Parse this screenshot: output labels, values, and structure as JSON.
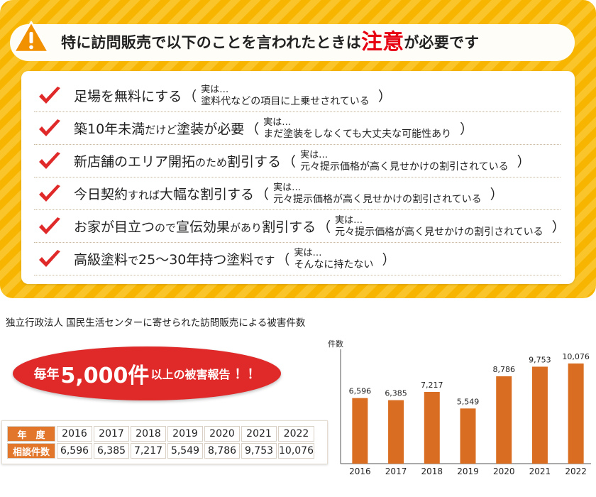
{
  "warning": {
    "title_before": "特に訪問販売で以下のことを言われたときは",
    "title_highlight": "注意",
    "title_after": "が必要です",
    "icon": "warning-triangle-icon",
    "colors": {
      "panel": "#f7b500",
      "highlight": "#e60012",
      "check": "#e02a2a"
    },
    "items": [
      {
        "claim_parts": [
          "足場を無料にする"
        ],
        "claim_small": [],
        "jitsu": "実は…",
        "detail": "塗料代などの項目に上乗せされている"
      },
      {
        "claim_parts": [
          "築10年未満",
          "塗装が必要"
        ],
        "claim_small": [
          "だけど"
        ],
        "jitsu": "実は…",
        "detail": "まだ塗装をしなくても大丈夫な可能性あり"
      },
      {
        "claim_parts": [
          "新店舗のエリア開拓",
          "割引する"
        ],
        "claim_small": [
          "のため"
        ],
        "jitsu": "実は…",
        "detail": "元々提示価格が高く見せかけの割引されている"
      },
      {
        "claim_parts": [
          "今日契約",
          "大幅な割引する"
        ],
        "claim_small": [
          "すれば"
        ],
        "jitsu": "実は…",
        "detail": "元々提示価格が高く見せかけの割引されている"
      },
      {
        "claim_parts": [
          "お家が目立つ",
          "宣伝効果",
          "割引する"
        ],
        "claim_small": [
          "ので",
          "があり"
        ],
        "jitsu": "実は…",
        "detail": "元々提示価格が高く見せかけの割引されている"
      },
      {
        "claim_parts": [
          "高級塗料",
          "25～30年持つ塗料",
          "す"
        ],
        "claim_small": [
          "で",
          "で"
        ],
        "jitsu": "実は…",
        "detail": "そんなに持たない"
      }
    ],
    "paren_open": "（",
    "paren_close": "）"
  },
  "source_note": "独立行政法人 国民生活センターに寄せられた訪問販売による被害件数",
  "badge": {
    "a": "毎年",
    "b": "5,000件",
    "c": "以上の被害報告",
    "d": "！！"
  },
  "table": {
    "row1_head": "年　度",
    "row2_head": "相談件数",
    "years": [
      "2016",
      "2017",
      "2018",
      "2019",
      "2020",
      "2021",
      "2022"
    ],
    "counts": [
      "6,596",
      "6,385",
      "7,217",
      "5,549",
      "8,786",
      "9,753",
      "10,076"
    ]
  },
  "chart_data": {
    "type": "bar",
    "categories": [
      "2016",
      "2017",
      "2018",
      "2019",
      "2020",
      "2021",
      "2022"
    ],
    "values": [
      6596,
      6385,
      7217,
      5549,
      8786,
      9753,
      10076
    ],
    "value_labels": [
      "6,596",
      "6,385",
      "7,217",
      "5,549",
      "8,786",
      "9,753",
      "10,076"
    ],
    "ylabel": "件数",
    "ylim": [
      0,
      11500
    ],
    "color": "#d96d22",
    "grid": false
  }
}
